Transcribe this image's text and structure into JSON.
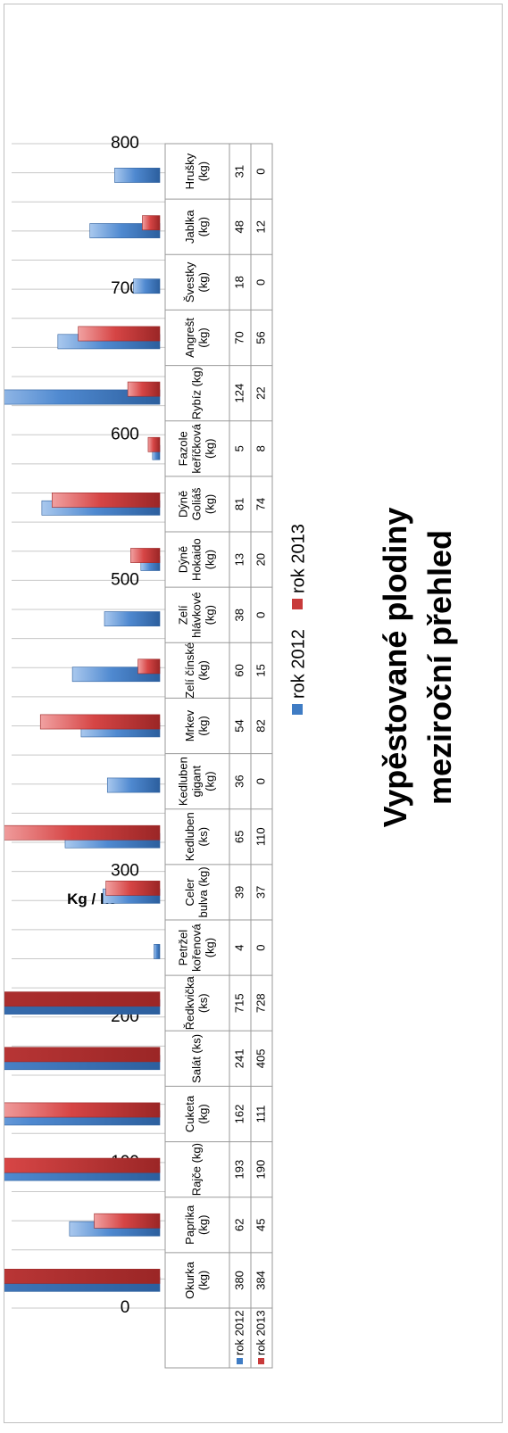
{
  "chart_data": {
    "type": "bar",
    "title_lines": [
      "Vypěstované plodiny",
      "meziroční přehled"
    ],
    "ylabel": "Kg / ks",
    "xlabel": "",
    "ylim": [
      0,
      800
    ],
    "yticks": [
      "0",
      "100",
      "200",
      "300",
      "400",
      "500",
      "600",
      "700",
      "800"
    ],
    "minor_grid_step": 20,
    "grid": true,
    "legend_position": "bottom",
    "categories": [
      [
        "Okurka",
        "(kg)"
      ],
      [
        "Paprika",
        "(kg)"
      ],
      [
        "Rajče (kg)"
      ],
      [
        "Cuketa",
        "(kg)"
      ],
      [
        "Salát (ks)"
      ],
      [
        "Ředkvička",
        "(ks)"
      ],
      [
        "Petržel",
        "kořenová",
        "(kg)"
      ],
      [
        "Celer",
        "bulva (kg)"
      ],
      [
        "Kedluben",
        "(ks)"
      ],
      [
        "Kedluben",
        "gigant",
        "(kg)"
      ],
      [
        "Mrkev",
        "(kg)"
      ],
      [
        "Zelí čínské",
        "(kg)"
      ],
      [
        "Zelí",
        "hlávkové",
        "(kg)"
      ],
      [
        "Dýně",
        "Hokaido",
        "(kg)"
      ],
      [
        "Dýně",
        "Goliáš",
        "(kg)"
      ],
      [
        "Fazole",
        "keříčková",
        "(kg)"
      ],
      [
        "Rybíz (kg)"
      ],
      [
        "Angrešt",
        "(kg)"
      ],
      [
        "Švestky",
        "(kg)"
      ],
      [
        "Jablka",
        "(kg)"
      ],
      [
        "Hrušky",
        "(kg)"
      ]
    ],
    "series": [
      {
        "name": "rok 2012",
        "color": "#3f7cc4",
        "values": [
          380,
          62,
          193,
          162,
          241,
          715,
          4,
          39,
          65,
          36,
          54,
          60,
          38,
          13,
          81,
          5,
          124,
          70,
          18,
          48,
          31
        ]
      },
      {
        "name": "rok 2013",
        "color": "#c83a3a",
        "values": [
          384,
          45,
          190,
          111,
          405,
          728,
          0,
          37,
          110,
          0,
          82,
          15,
          0,
          20,
          74,
          8,
          22,
          56,
          0,
          12,
          0
        ]
      }
    ]
  }
}
